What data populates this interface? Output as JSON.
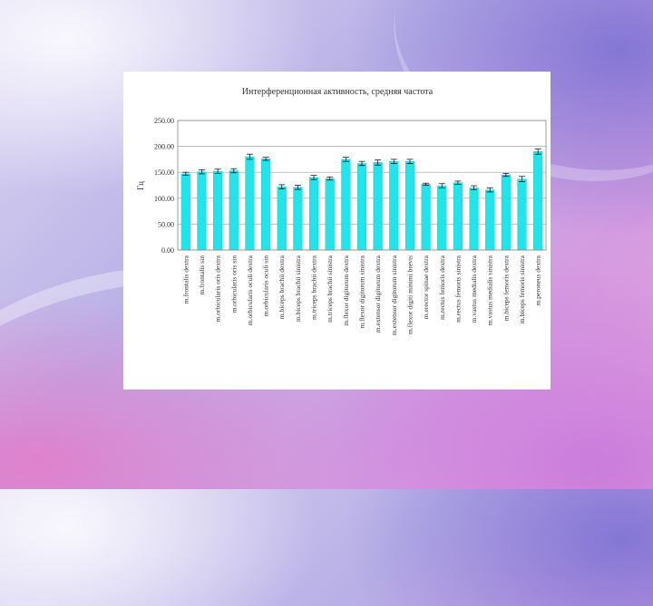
{
  "slide": {
    "bg_accent": "#b8b0e6"
  },
  "chart_data": {
    "type": "bar",
    "title": "Интерференционная активность, средняя частота",
    "ylabel": "Гц",
    "ylim": [
      0,
      250
    ],
    "grid": true,
    "bar_color": "#22e5ec",
    "yticks": [
      "0.00",
      "50.00",
      "100.00",
      "150.00",
      "200.00",
      "250.00"
    ],
    "ytick_values": [
      0,
      50,
      100,
      150,
      200,
      250
    ],
    "categories": [
      "m.frontalis dextra",
      "m.frontalis sin",
      "m.orbicularis oris dextra",
      "m.orbicularis oris sin",
      "m.orbicularis oculi dextra",
      "m.orbicularis oculi sin",
      "m.biceps brachii dextra",
      "m.biceps brachii sinistra",
      "m.triceps brachii dextra",
      "m.triceps brachii sinistra",
      "m.flexor digitorum dextra",
      "m.flexor digitorum sinistra",
      "m.extensor digitorum dextra",
      "m.extensor digitorum sinistra",
      "m.flexor digiti minimi brevis",
      "m.erector spinae dextra",
      "m.rectus femoris dextra",
      "m.rectus femoris sinistra",
      "m.vastus medialis dextra",
      "m.vastus medialis sinistra",
      "m.biceps femoris dextra",
      "m.biceps femoris sinistra",
      "m.peroneus dextra"
    ],
    "values": [
      147,
      151,
      152,
      153,
      180,
      176,
      122,
      121,
      140,
      138,
      175,
      167,
      169,
      171,
      171,
      127,
      124,
      130,
      120,
      116,
      145,
      137,
      190
    ],
    "errors": [
      3,
      4,
      4,
      4,
      5,
      3,
      4,
      4,
      4,
      3,
      4,
      4,
      5,
      4,
      4,
      2,
      4,
      3,
      4,
      4,
      3,
      5,
      5
    ]
  }
}
